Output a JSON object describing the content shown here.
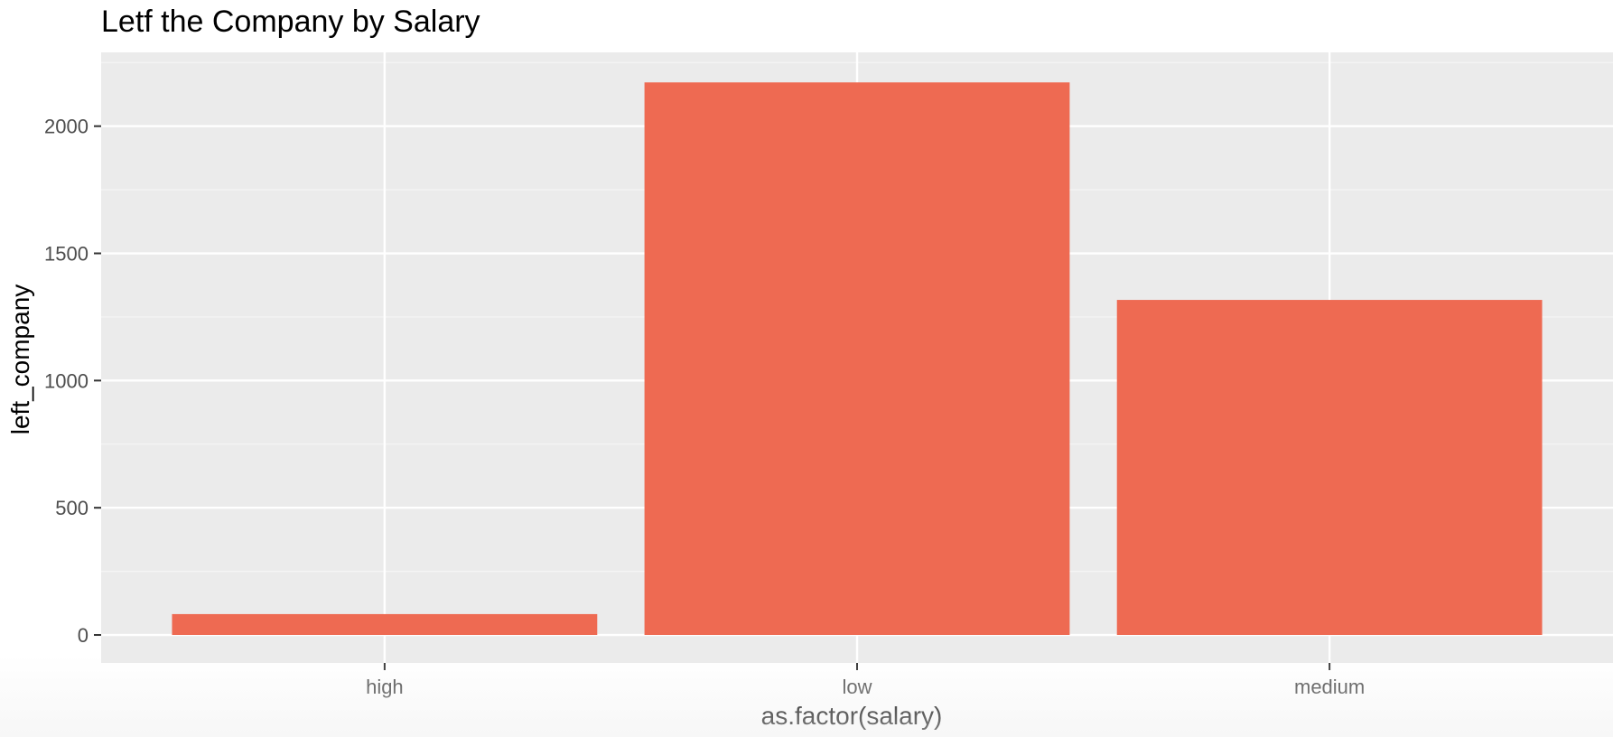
{
  "chart_data": {
    "type": "bar",
    "title": "Letf the Company by Salary",
    "xlabel": "as.factor(salary)",
    "ylabel": "left_company",
    "categories": [
      "high",
      "low",
      "medium"
    ],
    "values": [
      82,
      2172,
      1317
    ],
    "ylim": [
      -110,
      2290
    ],
    "yticks": [
      0,
      500,
      1000,
      1500,
      2000
    ],
    "grid": true,
    "legend": "none",
    "colors": {
      "bar": "#ee6a52",
      "panel": "#ebebeb",
      "grid_major": "#ffffff",
      "grid_minor": "#f5f5f5",
      "tick_text": "#4d4d4d",
      "tick_mark": "#333333"
    }
  }
}
